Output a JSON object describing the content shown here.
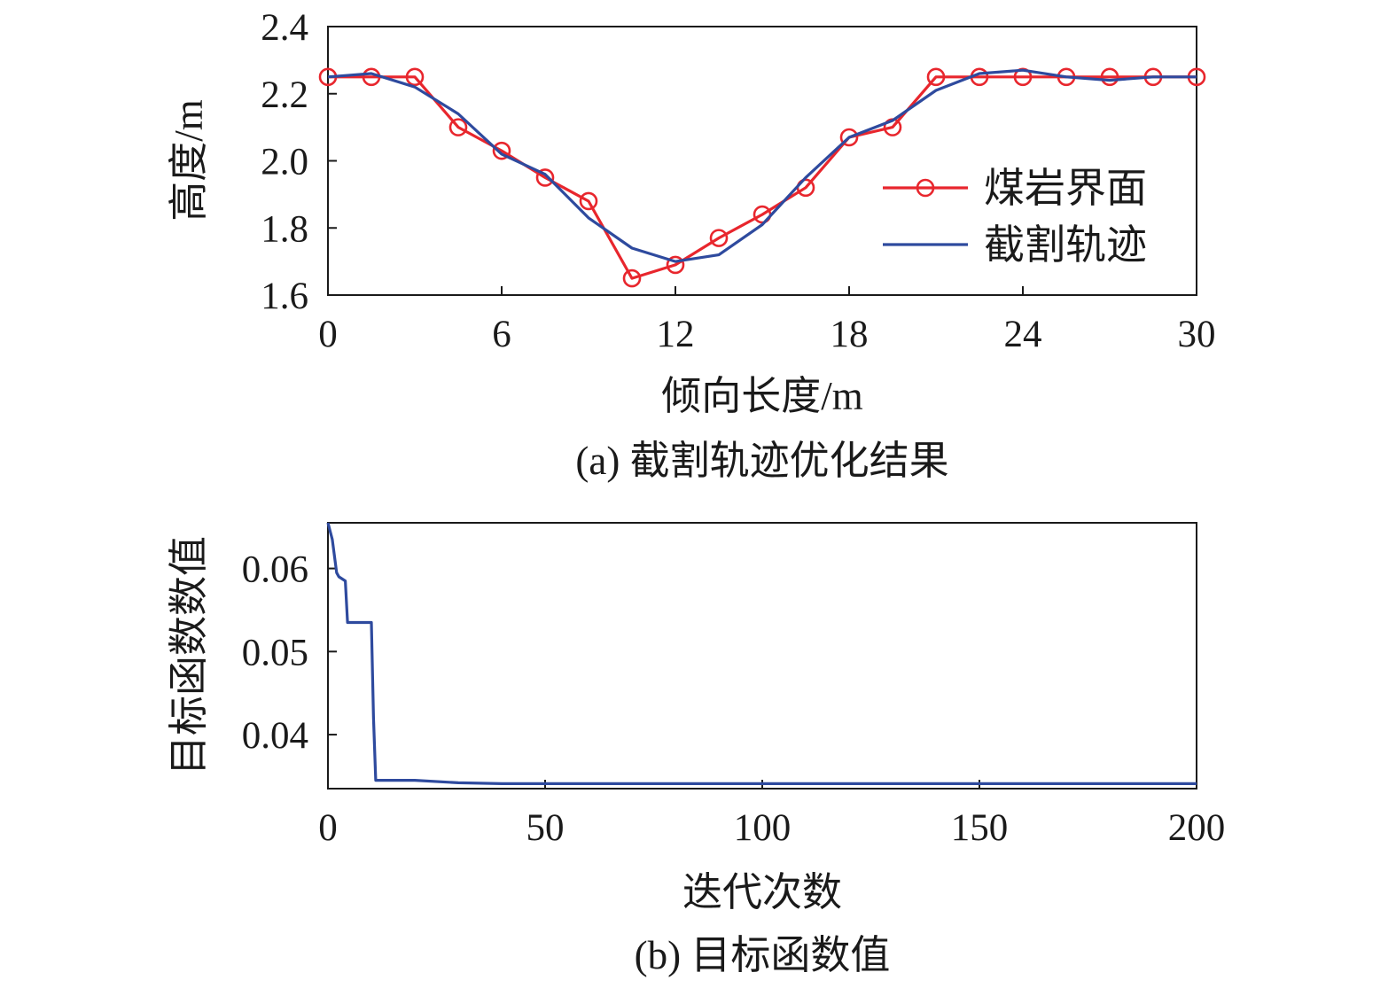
{
  "chart_data": [
    {
      "type": "line",
      "caption": "(a) 截割轨迹优化结果",
      "xlabel": "倾向长度/m",
      "ylabel": "高度/m",
      "xlim": [
        0,
        30
      ],
      "ylim": [
        1.6,
        2.4
      ],
      "xticks": [
        0,
        6,
        12,
        18,
        24,
        30
      ],
      "yticks": [
        1.6,
        1.8,
        2.0,
        2.2,
        2.4
      ],
      "xtick_labels": [
        "0",
        "6",
        "12",
        "18",
        "24",
        "30"
      ],
      "ytick_labels": [
        "1.6",
        "1.8",
        "2.0",
        "2.2",
        "2.4"
      ],
      "legend_position": "right",
      "series": [
        {
          "name": "煤岩界面",
          "color": "#e8262d",
          "marker": "circle",
          "x": [
            0,
            1.5,
            3,
            4.5,
            6,
            7.5,
            9,
            10.5,
            12,
            13.5,
            15,
            16.5,
            18,
            19.5,
            21,
            22.5,
            24,
            25.5,
            27,
            28.5,
            30
          ],
          "y": [
            2.25,
            2.25,
            2.25,
            2.1,
            2.03,
            1.95,
            1.88,
            1.65,
            1.69,
            1.77,
            1.84,
            1.92,
            2.07,
            2.1,
            2.25,
            2.25,
            2.25,
            2.25,
            2.25,
            2.25,
            2.25
          ]
        },
        {
          "name": "截割轨迹",
          "color": "#2e4a9e",
          "marker": "none",
          "x": [
            0,
            1.5,
            3,
            4.5,
            6,
            7.5,
            9,
            10.5,
            12,
            13.5,
            15,
            16.5,
            18,
            19.5,
            21,
            22.5,
            24,
            25.5,
            27,
            28.5,
            30
          ],
          "y": [
            2.25,
            2.26,
            2.22,
            2.14,
            2.02,
            1.96,
            1.83,
            1.74,
            1.7,
            1.72,
            1.81,
            1.95,
            2.07,
            2.12,
            2.21,
            2.26,
            2.27,
            2.25,
            2.24,
            2.25,
            2.25
          ]
        }
      ]
    },
    {
      "type": "line",
      "caption": "(b) 目标函数值",
      "xlabel": "迭代次数",
      "ylabel": "目标函数数值",
      "xlim": [
        0,
        200
      ],
      "ylim": [
        0.0335,
        0.0655
      ],
      "xticks": [
        0,
        50,
        100,
        150,
        200
      ],
      "yticks": [
        0.04,
        0.05,
        0.06
      ],
      "xtick_labels": [
        "0",
        "50",
        "100",
        "150",
        "200"
      ],
      "ytick_labels": [
        "0.04",
        "0.05",
        "0.06"
      ],
      "series": [
        {
          "color": "#2e4a9e",
          "x": [
            0,
            1,
            2,
            2.5,
            4,
            4.5,
            10,
            10.5,
            11,
            20,
            30,
            40,
            60,
            200
          ],
          "y": [
            0.0655,
            0.0635,
            0.0595,
            0.059,
            0.0585,
            0.0535,
            0.0535,
            0.042,
            0.0345,
            0.0345,
            0.0342,
            0.0341,
            0.0341,
            0.0341
          ]
        }
      ]
    }
  ]
}
